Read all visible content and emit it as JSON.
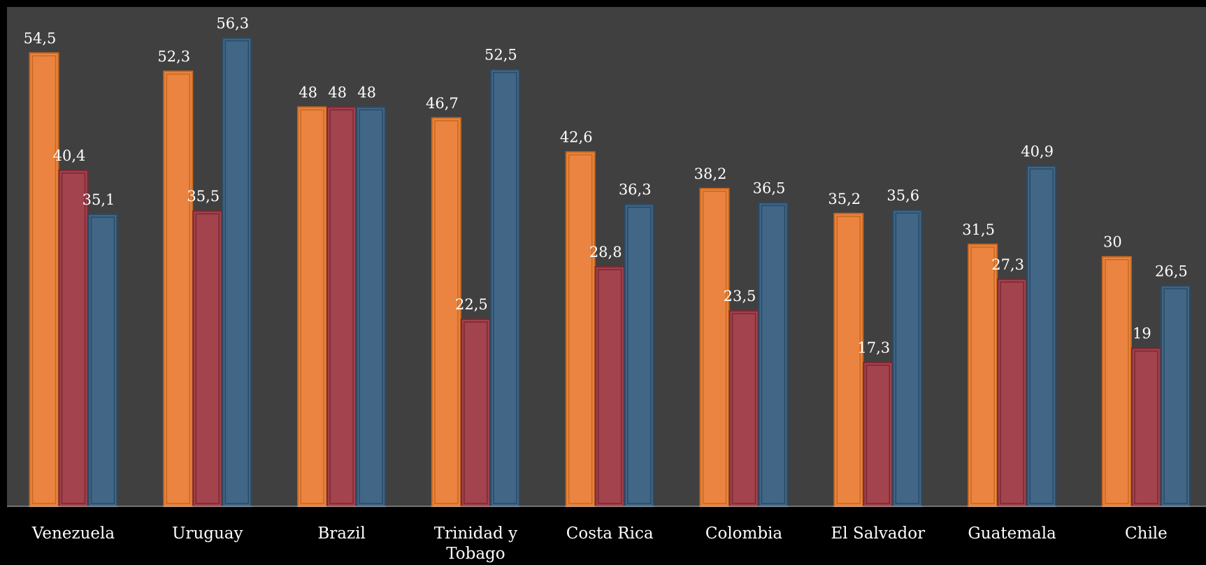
{
  "chart_data": {
    "type": "bar",
    "title": "",
    "xlabel": "",
    "ylabel": "",
    "ylim": [
      0,
      60
    ],
    "grid": false,
    "legend": "none",
    "categories": [
      "Venezuela",
      "Uruguay",
      "Brazil",
      "Trinidad y Tobago",
      "Costa Rica",
      "Colombia",
      "El Salvador",
      "Guatemala",
      "Chile"
    ],
    "series": [
      {
        "color": "#ea8440",
        "edge": "#c8681f",
        "values": [
          54.5,
          52.3,
          48,
          46.7,
          42.6,
          38.2,
          35.2,
          31.5,
          30
        ],
        "labels": [
          "54,5",
          "52,3",
          "48",
          "46,7",
          "42,6",
          "38,2",
          "35,2",
          "31,5",
          "30"
        ]
      },
      {
        "color": "#a2434d",
        "edge": "#7a2832",
        "values": [
          40.4,
          35.5,
          48,
          22.5,
          28.8,
          23.5,
          17.3,
          27.3,
          19
        ],
        "labels": [
          "40,4",
          "35,5",
          "48",
          "22,5",
          "28,8",
          "23,5",
          "17,3",
          "27,3",
          "19"
        ]
      },
      {
        "color": "#416686",
        "edge": "#2a4a66",
        "values": [
          35.1,
          56.3,
          48,
          52.5,
          36.3,
          36.5,
          35.6,
          40.9,
          26.5
        ],
        "labels": [
          "35,1",
          "56,3",
          "48",
          "52,5",
          "36,3",
          "36,5",
          "35,6",
          "40,9",
          "26,5"
        ]
      }
    ],
    "plot_background": "#404040",
    "page_background": "#000000",
    "axis_color": "#bfbfbf",
    "label_color": "#ffffff"
  }
}
